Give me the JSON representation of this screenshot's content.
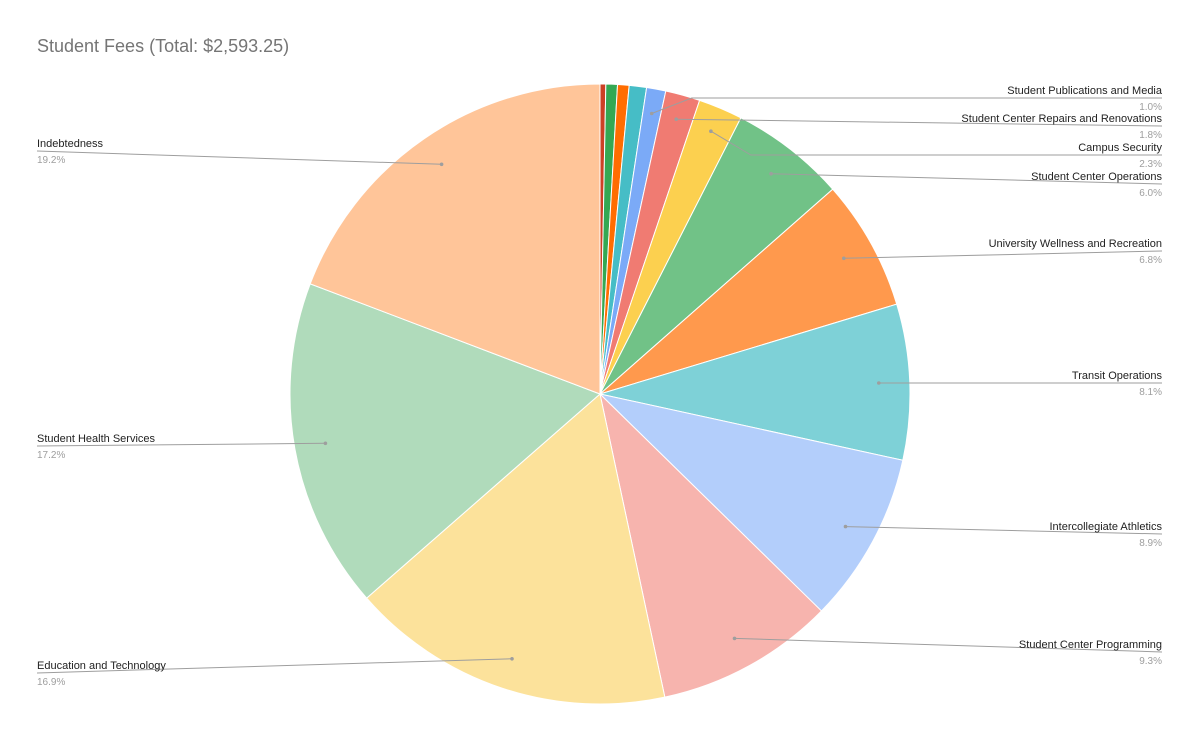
{
  "chart_data": {
    "type": "pie",
    "title": "Student Fees (Total: $2,593.25)",
    "slices": [
      {
        "label": "",
        "percent": 0.3,
        "color": "#cc4125"
      },
      {
        "label": "",
        "percent": 0.6,
        "color": "#34a853"
      },
      {
        "label": "",
        "percent": 0.6,
        "color": "#ff6d01"
      },
      {
        "label": "",
        "percent": 0.9,
        "color": "#46bdc6"
      },
      {
        "label": "Student Publications and Media",
        "percent": 1.0,
        "percent_label": "1.0%",
        "color": "#7baaf7"
      },
      {
        "label": "Student Center Repairs and Renovations",
        "percent": 1.8,
        "percent_label": "1.8%",
        "color": "#f07b72"
      },
      {
        "label": "Campus Security",
        "percent": 2.3,
        "percent_label": "2.3%",
        "color": "#fcd04f"
      },
      {
        "label": "Student Center Operations",
        "percent": 6.0,
        "percent_label": "6.0%",
        "color": "#71c287"
      },
      {
        "label": "University Wellness and Recreation",
        "percent": 6.8,
        "percent_label": "6.8%",
        "color": "#ff994d"
      },
      {
        "label": "Transit Operations",
        "percent": 8.1,
        "percent_label": "8.1%",
        "color": "#7ed1d7"
      },
      {
        "label": "Intercollegiate Athletics",
        "percent": 8.9,
        "percent_label": "8.9%",
        "color": "#b3cefb"
      },
      {
        "label": "Student Center Programming",
        "percent": 9.3,
        "percent_label": "9.3%",
        "color": "#f7b4ae"
      },
      {
        "label": "Education and Technology",
        "percent": 16.9,
        "percent_label": "16.9%",
        "color": "#fce29b"
      },
      {
        "label": "Student Health Services",
        "percent": 17.2,
        "percent_label": "17.2%",
        "color": "#b0dbbb"
      },
      {
        "label": "Indebtedness",
        "percent": 19.2,
        "percent_label": "19.2%",
        "color": "#ffc599"
      }
    ],
    "legend": "none",
    "labels_placement": "callout"
  }
}
